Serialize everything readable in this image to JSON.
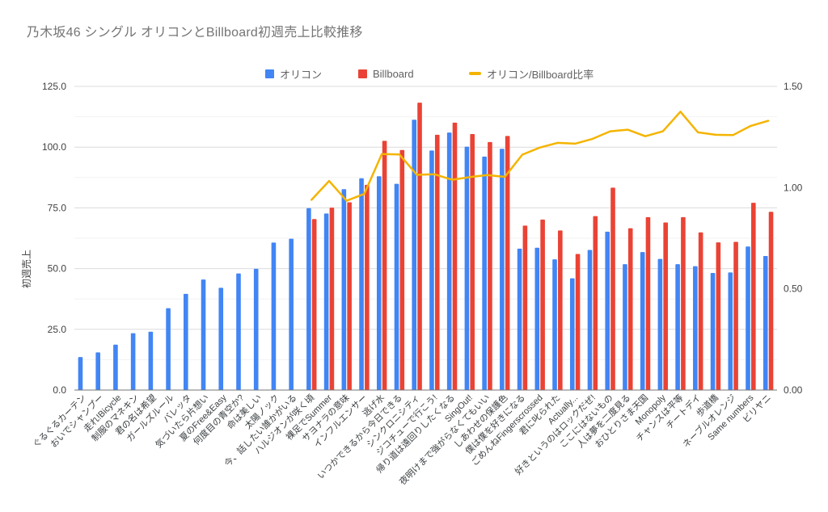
{
  "title": "乃木坂46 シングル オリコンとBillboard初週売上比較推移",
  "legend": [
    {
      "label": "オリコン",
      "swatch": "square",
      "color": "#4285F4"
    },
    {
      "label": "Billboard",
      "swatch": "square",
      "color": "#EA4335"
    },
    {
      "label": "オリコン/Billboard比率",
      "swatch": "dash",
      "color": "#F4B400"
    }
  ],
  "left_axis": {
    "title": "初週売上",
    "ticks": [
      "0.0",
      "25.0",
      "50.0",
      "75.0",
      "100.0",
      "125.0"
    ]
  },
  "right_axis": {
    "ticks": [
      "0.00",
      "0.50",
      "1.00",
      "1.50"
    ]
  },
  "chart_data": {
    "type": "combo",
    "title": "乃木坂46 シングル オリコンとBillboard初週売上比較推移",
    "legend_position": "top",
    "grid": true,
    "left_axis_label": "初週売上",
    "left_range": [
      0,
      125
    ],
    "right_range": [
      0,
      1.5
    ],
    "categories": [
      "ぐるぐるカーテン",
      "おいでシャンプー",
      "走れ!Bicycle",
      "制服のマネキン",
      "君の名は希望",
      "ガールズルール",
      "バレッタ",
      "気づいたら片想い",
      "夏のFree&Easy",
      "何度目の青空か?",
      "命は美しい",
      "太陽ノック",
      "今、話したい誰かがいる",
      "ハルジオンが咲く頃",
      "裸足でSummer",
      "サヨナラの意味",
      "インフルエンサー",
      "逃げ水",
      "いつかできるから今日できる",
      "シンクロニシティ",
      "ジコチューで行こう!",
      "帰り道は遠回りしたくなる",
      "SingOut!",
      "夜明けまで強がらなくてもいい",
      "しあわせの保護色",
      "僕は僕を好きになる",
      "ごめんねFingerscrossed",
      "君に叱られた",
      "Actually...",
      "好きというのはロックだぜ!",
      "ここにはないもの",
      "人は夢を二度見る",
      "おひとりさま天国",
      "Monopoly",
      "チャンスは平等",
      "チートデイ",
      "歩道橋",
      "ネーブルオレンジ",
      "Same numbers",
      "ビリヤニ"
    ],
    "series": [
      {
        "name": "オリコン",
        "type": "bar",
        "axis": "left",
        "color": "#4285F4",
        "values": [
          13.6,
          15.5,
          18.7,
          23.4,
          24.0,
          33.7,
          39.6,
          45.5,
          42.1,
          48.0,
          49.9,
          60.7,
          62.3,
          74.9,
          72.7,
          82.7,
          87.2,
          88.0,
          84.9,
          111.3,
          98.6,
          106.0,
          100.2,
          96.1,
          99.3,
          58.2,
          58.6,
          53.8,
          46.0,
          57.7,
          65.2,
          51.8,
          56.8,
          54.0,
          51.8,
          51.0,
          48.2,
          48.4,
          59.1,
          55.2
        ]
      },
      {
        "name": "Billboard",
        "type": "bar",
        "axis": "left",
        "color": "#EA4335",
        "values": [
          null,
          null,
          null,
          null,
          null,
          null,
          null,
          null,
          null,
          null,
          null,
          null,
          null,
          70.4,
          75.1,
          77.3,
          84.5,
          102.6,
          98.8,
          118.3,
          105.1,
          110.1,
          105.4,
          102.1,
          104.6,
          67.7,
          70.2,
          65.7,
          56.0,
          71.6,
          83.3,
          66.6,
          71.2,
          69.0,
          71.2,
          64.9,
          60.8,
          61.0,
          77.1,
          73.4
        ]
      },
      {
        "name": "オリコン/Billboard比率",
        "type": "line",
        "axis": "right",
        "color": "#F4B400",
        "values": [
          null,
          null,
          null,
          null,
          null,
          null,
          null,
          null,
          null,
          null,
          null,
          null,
          null,
          0.94,
          1.033,
          0.935,
          0.969,
          1.166,
          1.164,
          1.063,
          1.066,
          1.039,
          1.052,
          1.062,
          1.053,
          1.163,
          1.198,
          1.221,
          1.217,
          1.241,
          1.278,
          1.286,
          1.254,
          1.278,
          1.375,
          1.273,
          1.261,
          1.26,
          1.305,
          1.33
        ]
      }
    ]
  }
}
